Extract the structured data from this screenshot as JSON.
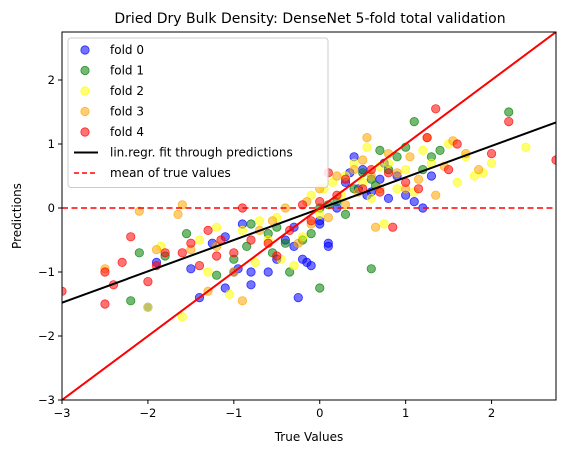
{
  "chart_data": {
    "type": "scatter",
    "title": "Dried Dry Bulk Density: DenseNet 5-fold total validation",
    "xlabel": "True Values",
    "ylabel": "Predictions",
    "xlim": [
      -3.0,
      2.75
    ],
    "ylim": [
      -3.0,
      2.75
    ],
    "x_ticks": [
      -3,
      -2,
      -1,
      0,
      1,
      2
    ],
    "y_ticks": [
      -3,
      -2,
      -1,
      0,
      1,
      2
    ],
    "x_tick_labels": [
      "−3",
      "−2",
      "−1",
      "0",
      "1",
      "2"
    ],
    "y_tick_labels": [
      "−3",
      "−2",
      "−1",
      "0",
      "1",
      "2"
    ],
    "grid": false,
    "legend_placement": "upper-left",
    "point_alpha": 0.55,
    "series": [
      {
        "name": "fold 0",
        "color": "#0000ff",
        "points": [
          [
            -2.0,
            -1.55
          ],
          [
            -1.9,
            -0.85
          ],
          [
            -1.5,
            -0.95
          ],
          [
            -1.4,
            -1.4
          ],
          [
            -1.1,
            -1.25
          ],
          [
            -1.0,
            -1.0
          ],
          [
            -0.95,
            -0.95
          ],
          [
            -0.8,
            -1.2
          ],
          [
            -0.8,
            -1.0
          ],
          [
            -0.6,
            -1.0
          ],
          [
            -0.5,
            -0.8
          ],
          [
            -0.4,
            -0.5
          ],
          [
            -0.3,
            -0.3
          ],
          [
            -0.3,
            -0.6
          ],
          [
            -0.25,
            -1.4
          ],
          [
            -0.2,
            -0.8
          ],
          [
            -0.15,
            -0.85
          ],
          [
            -0.1,
            -0.9
          ],
          [
            0.0,
            -0.2
          ],
          [
            0.0,
            -0.25
          ],
          [
            0.1,
            -0.55
          ],
          [
            0.1,
            -0.6
          ],
          [
            0.2,
            0.0
          ],
          [
            0.3,
            0.4
          ],
          [
            0.35,
            0.55
          ],
          [
            0.4,
            0.8
          ],
          [
            0.45,
            0.3
          ],
          [
            0.5,
            0.6
          ],
          [
            0.55,
            0.2
          ],
          [
            0.6,
            0.25
          ],
          [
            0.7,
            0.45
          ],
          [
            0.75,
            0.7
          ],
          [
            0.8,
            0.15
          ],
          [
            0.9,
            0.5
          ],
          [
            1.0,
            0.2
          ],
          [
            1.1,
            0.1
          ],
          [
            1.2,
            0.0
          ],
          [
            1.3,
            0.5
          ],
          [
            -1.25,
            -0.55
          ],
          [
            -1.1,
            -0.45
          ],
          [
            -0.9,
            -0.25
          ]
        ]
      },
      {
        "name": "fold 1",
        "color": "#008000",
        "points": [
          [
            -2.2,
            -1.45
          ],
          [
            -2.1,
            -0.7
          ],
          [
            -1.8,
            -0.75
          ],
          [
            -1.55,
            -0.4
          ],
          [
            -1.2,
            -1.05
          ],
          [
            -1.0,
            -0.8
          ],
          [
            -0.8,
            -0.25
          ],
          [
            -0.6,
            -0.4
          ],
          [
            -0.5,
            -0.3
          ],
          [
            -0.4,
            -0.55
          ],
          [
            -0.35,
            -1.0
          ],
          [
            -0.2,
            -0.5
          ],
          [
            -0.1,
            -0.4
          ],
          [
            0.0,
            -1.25
          ],
          [
            0.0,
            0.0
          ],
          [
            0.1,
            0.05
          ],
          [
            0.2,
            0.1
          ],
          [
            0.3,
            -0.1
          ],
          [
            0.4,
            0.3
          ],
          [
            0.5,
            0.55
          ],
          [
            0.6,
            -0.95
          ],
          [
            0.6,
            0.45
          ],
          [
            0.65,
            0.35
          ],
          [
            0.7,
            0.9
          ],
          [
            0.8,
            0.6
          ],
          [
            0.9,
            0.8
          ],
          [
            1.0,
            0.95
          ],
          [
            1.1,
            1.35
          ],
          [
            1.2,
            0.6
          ],
          [
            1.3,
            0.8
          ],
          [
            1.4,
            0.9
          ],
          [
            2.2,
            1.5
          ],
          [
            -0.85,
            -0.6
          ],
          [
            -0.55,
            -0.7
          ]
        ]
      },
      {
        "name": "fold 2",
        "color": "#ffff00",
        "points": [
          [
            -2.0,
            -1.55
          ],
          [
            -1.85,
            -0.6
          ],
          [
            -1.6,
            -1.7
          ],
          [
            -1.4,
            -0.5
          ],
          [
            -1.3,
            -1.0
          ],
          [
            -1.2,
            -0.3
          ],
          [
            -1.05,
            -1.35
          ],
          [
            -0.9,
            -0.35
          ],
          [
            -0.7,
            -0.2
          ],
          [
            -0.6,
            -0.5
          ],
          [
            -0.5,
            -0.15
          ],
          [
            -0.3,
            -0.9
          ],
          [
            -0.2,
            -0.45
          ],
          [
            -0.1,
            0.2
          ],
          [
            0.0,
            -0.1
          ],
          [
            0.05,
            0.3
          ],
          [
            0.15,
            0.4
          ],
          [
            0.25,
            0.2
          ],
          [
            0.3,
            0.5
          ],
          [
            0.4,
            0.7
          ],
          [
            0.5,
            0.4
          ],
          [
            0.55,
            0.95
          ],
          [
            0.6,
            0.15
          ],
          [
            0.7,
            0.65
          ],
          [
            0.8,
            0.7
          ],
          [
            0.9,
            0.3
          ],
          [
            1.0,
            0.6
          ],
          [
            1.1,
            0.25
          ],
          [
            1.2,
            0.9
          ],
          [
            1.3,
            0.7
          ],
          [
            1.5,
            1.0
          ],
          [
            1.7,
            0.8
          ],
          [
            1.8,
            0.5
          ],
          [
            1.9,
            0.55
          ],
          [
            2.0,
            0.7
          ],
          [
            2.4,
            0.95
          ],
          [
            -0.75,
            -0.85
          ],
          [
            -0.45,
            -0.8
          ],
          [
            0.75,
            -0.25
          ],
          [
            1.6,
            0.4
          ]
        ]
      },
      {
        "name": "fold 3",
        "color": "#ffa500",
        "points": [
          [
            -2.5,
            -0.95
          ],
          [
            -2.1,
            -0.05
          ],
          [
            -1.9,
            -0.65
          ],
          [
            -1.6,
            0.05
          ],
          [
            -1.5,
            -0.65
          ],
          [
            -1.3,
            -1.3
          ],
          [
            -1.2,
            -0.6
          ],
          [
            -1.0,
            -1.0
          ],
          [
            -0.9,
            -1.45
          ],
          [
            -0.7,
            -0.35
          ],
          [
            -0.55,
            -0.2
          ],
          [
            -0.4,
            0.0
          ],
          [
            -0.25,
            -0.55
          ],
          [
            -0.1,
            -0.25
          ],
          [
            0.0,
            0.3
          ],
          [
            0.1,
            -0.15
          ],
          [
            0.2,
            0.5
          ],
          [
            0.3,
            0.05
          ],
          [
            0.4,
            0.6
          ],
          [
            0.5,
            0.75
          ],
          [
            0.55,
            1.1
          ],
          [
            0.6,
            0.5
          ],
          [
            0.65,
            -0.3
          ],
          [
            0.7,
            0.3
          ],
          [
            0.8,
            0.85
          ],
          [
            0.9,
            0.55
          ],
          [
            1.0,
            0.3
          ],
          [
            1.05,
            0.8
          ],
          [
            1.15,
            0.45
          ],
          [
            1.25,
            1.1
          ],
          [
            1.35,
            0.2
          ],
          [
            1.45,
            0.65
          ],
          [
            1.55,
            1.05
          ],
          [
            1.7,
            0.85
          ],
          [
            1.85,
            0.6
          ],
          [
            -1.65,
            -0.1
          ],
          [
            -0.15,
            0.1
          ],
          [
            0.45,
            0.25
          ]
        ]
      },
      {
        "name": "fold 4",
        "color": "#ff0000",
        "points": [
          [
            -3.0,
            -1.3
          ],
          [
            -2.5,
            -1.0
          ],
          [
            -2.4,
            -1.2
          ],
          [
            -2.3,
            -0.85
          ],
          [
            -2.2,
            -0.45
          ],
          [
            -2.0,
            -1.15
          ],
          [
            -1.9,
            -0.9
          ],
          [
            -1.8,
            -0.7
          ],
          [
            -1.6,
            -0.7
          ],
          [
            -1.5,
            -0.55
          ],
          [
            -1.4,
            -0.9
          ],
          [
            -1.3,
            -0.35
          ],
          [
            -1.15,
            -0.5
          ],
          [
            -1.0,
            -0.7
          ],
          [
            -0.9,
            0.0
          ],
          [
            -0.8,
            -0.5
          ],
          [
            -0.6,
            -0.55
          ],
          [
            -0.5,
            -0.75
          ],
          [
            -0.35,
            -0.35
          ],
          [
            -0.2,
            0.05
          ],
          [
            -0.1,
            -0.2
          ],
          [
            0.0,
            0.1
          ],
          [
            0.1,
            0.55
          ],
          [
            0.2,
            0.2
          ],
          [
            0.3,
            0.45
          ],
          [
            0.5,
            0.3
          ],
          [
            0.6,
            0.6
          ],
          [
            0.7,
            0.25
          ],
          [
            0.8,
            0.55
          ],
          [
            1.0,
            0.4
          ],
          [
            1.15,
            0.3
          ],
          [
            1.25,
            1.1
          ],
          [
            1.35,
            1.55
          ],
          [
            1.5,
            0.6
          ],
          [
            1.6,
            1.0
          ],
          [
            2.0,
            0.85
          ],
          [
            2.2,
            1.35
          ],
          [
            2.75,
            0.75
          ],
          [
            -2.5,
            -1.5
          ],
          [
            -1.2,
            -0.75
          ],
          [
            0.85,
            -0.3
          ]
        ]
      }
    ],
    "lines": [
      {
        "name": "lin.regr. fit through predictions",
        "color": "#000000",
        "style": "solid",
        "slope": 0.49,
        "intercept": -0.01
      },
      {
        "name": "mean of true values",
        "color": "#ff0000",
        "style": "dashed",
        "y": 0.0
      },
      {
        "name": "",
        "color": "#ff0000",
        "style": "solid",
        "slope": 1.0,
        "intercept": 0.0
      }
    ]
  }
}
